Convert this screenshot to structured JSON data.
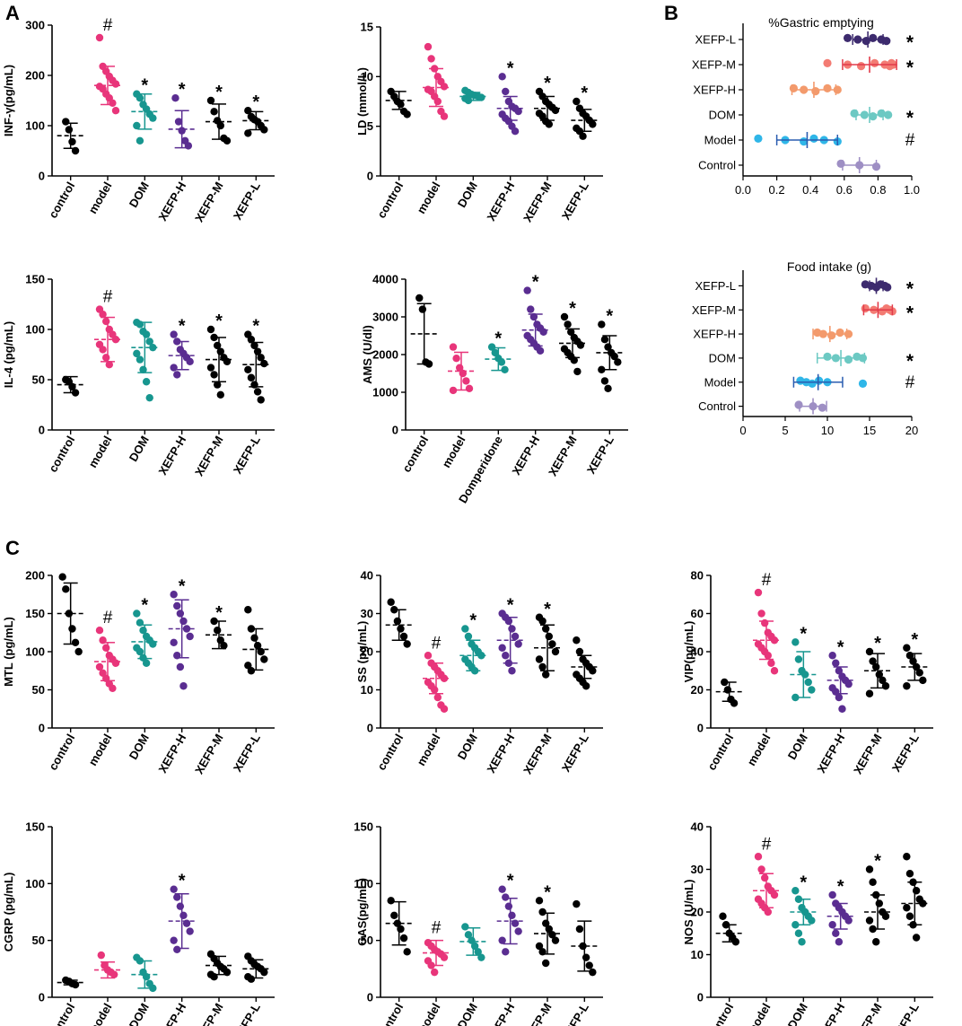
{
  "panel_letters": [
    "A",
    "B",
    "C"
  ],
  "colors": {
    "control": "#000000",
    "model": "#e8357a",
    "dom": "#17968f",
    "xefph": "#5a2d91",
    "xefpm": "#000000",
    "xefpl": "#000000",
    "b_control": "#9e8fc4",
    "b_model": "#2fb6e8",
    "b_dom": "#6cc9c3",
    "b_xefph": "#f39a6c",
    "b_xefpm": "#f37b73",
    "b_xefpl": "#3d2b6e",
    "b_model_bar": "#2a5db0",
    "b_xefpm_bar": "#e23b4a"
  },
  "chart_data": [
    {
      "id": "a1",
      "type": "scatter",
      "ylabel": "INF-γ(pg/mL)",
      "ylim": [
        0,
        300
      ],
      "yticks": [
        0,
        100,
        200,
        300
      ],
      "categories": [
        "control",
        "model",
        "DOM",
        "XEFP-H",
        "XEFP-M",
        "XEFP-L"
      ],
      "markers": [
        "",
        "#",
        "*",
        "*",
        "*",
        "*"
      ],
      "means": [
        80,
        180,
        128,
        93,
        108,
        110
      ],
      "sds": [
        25,
        38,
        35,
        37,
        35,
        18
      ],
      "points": [
        [
          108,
          92,
          68,
          50
        ],
        [
          275,
          218,
          208,
          198,
          190,
          183,
          178,
          173,
          163,
          155,
          145,
          130
        ],
        [
          163,
          155,
          142,
          133,
          123,
          115,
          100,
          70
        ],
        [
          155,
          108,
          90,
          70,
          60
        ],
        [
          150,
          128,
          110,
          100,
          75,
          70
        ],
        [
          130,
          118,
          112,
          108,
          100,
          92,
          85
        ]
      ]
    },
    {
      "id": "a2",
      "type": "scatter",
      "ylabel": "LD (mmol/L)",
      "ylim": [
        0,
        15
      ],
      "yticks": [
        0,
        5,
        10,
        15
      ],
      "categories": [
        "control",
        "model",
        "DOM",
        "XEFP-H",
        "XEFP-M",
        "XEFP-L"
      ],
      "markers": [
        "",
        "",
        "",
        "*",
        "*",
        "*"
      ],
      "means": [
        7.6,
        8.9,
        8.0,
        6.8,
        6.8,
        5.6
      ],
      "sds": [
        0.9,
        1.9,
        0.4,
        1.2,
        1.2,
        1.1
      ],
      "points": [
        [
          8.5,
          8.0,
          7.5,
          7.2,
          6.5,
          6.2
        ],
        [
          13.0,
          11.8,
          10.8,
          10.0,
          9.5,
          9.0,
          8.7,
          8.5,
          8.0,
          7.5,
          6.5,
          6.0
        ],
        [
          8.6,
          8.4,
          8.2,
          8.1,
          8.0,
          7.9,
          7.8,
          7.6
        ],
        [
          10.0,
          8.5,
          7.5,
          7.0,
          6.8,
          6.5,
          6.2,
          5.8,
          5.5,
          5.0,
          4.5
        ],
        [
          8.5,
          8.0,
          7.5,
          7.2,
          6.9,
          6.6,
          6.3,
          6.0,
          5.5,
          5.2
        ],
        [
          7.5,
          6.8,
          6.3,
          6.0,
          5.6,
          5.2,
          4.8,
          4.5,
          4.0
        ]
      ]
    },
    {
      "id": "a3",
      "type": "scatter",
      "ylabel": "IL-4 (pg/mL)",
      "ylim": [
        0,
        150
      ],
      "yticks": [
        0,
        50,
        100,
        150
      ],
      "categories": [
        "control",
        "model",
        "DOM",
        "XEFP-H",
        "XEFP-M",
        "XEFP-L"
      ],
      "markers": [
        "",
        "#",
        "",
        "*",
        "*",
        "*"
      ],
      "means": [
        45,
        90,
        82,
        74,
        70,
        65
      ],
      "sds": [
        8,
        22,
        25,
        14,
        22,
        22
      ],
      "points": [
        [
          50,
          48,
          43,
          37
        ],
        [
          120,
          115,
          108,
          100,
          95,
          90,
          85,
          80,
          72,
          65
        ],
        [
          107,
          105,
          98,
          95,
          88,
          82,
          76,
          70,
          60,
          48,
          32
        ],
        [
          95,
          88,
          80,
          76,
          72,
          68,
          62,
          55
        ],
        [
          100,
          92,
          84,
          78,
          72,
          68,
          62,
          55,
          45,
          35
        ],
        [
          95,
          90,
          84,
          78,
          72,
          66,
          60,
          52,
          45,
          38,
          30
        ]
      ]
    },
    {
      "id": "a4",
      "type": "scatter",
      "ylabel": "AMS (U/dl)",
      "ylim": [
        0,
        4000
      ],
      "yticks": [
        0,
        1000,
        2000,
        3000,
        4000
      ],
      "categories": [
        "control",
        "model",
        "Domperidone",
        "XEFP-H",
        "XEFP-M",
        "XEFP-L"
      ],
      "markers": [
        "",
        "",
        "*",
        "*",
        "*",
        "*"
      ],
      "means": [
        2550,
        1560,
        1880,
        2650,
        2300,
        2050
      ],
      "sds": [
        800,
        500,
        300,
        420,
        380,
        450
      ],
      "points": [
        [
          3500,
          3200,
          1800,
          1750
        ],
        [
          2200,
          1900,
          1650,
          1500,
          1300,
          1100,
          1050
        ],
        [
          2200,
          2050,
          1900,
          1800,
          1600
        ],
        [
          3700,
          3200,
          3000,
          2800,
          2700,
          2600,
          2500,
          2400,
          2300,
          2200,
          2100
        ],
        [
          3000,
          2800,
          2600,
          2450,
          2350,
          2250,
          2150,
          2050,
          1950,
          1850,
          1550
        ],
        [
          2800,
          2400,
          2200,
          2050,
          1950,
          1800,
          1600,
          1300,
          1100
        ]
      ]
    },
    {
      "id": "b1",
      "type": "scatter",
      "orientation": "horizontal",
      "title": "%Gastric emptying",
      "xlim": [
        0,
        1.0
      ],
      "xticks": [
        "0.0",
        "0.2",
        "0.4",
        "0.6",
        "0.8",
        "1.0"
      ],
      "categories": [
        "XEFP-L",
        "XEFP-M",
        "XEFP-H",
        "DOM",
        "Model",
        "Control"
      ],
      "markers": [
        "*",
        "*",
        "",
        "*",
        "#",
        ""
      ],
      "means": [
        0.74,
        0.75,
        0.42,
        0.75,
        0.38,
        0.69
      ],
      "sds": [
        0.09,
        0.16,
        0.13,
        0.08,
        0.18,
        0.1
      ],
      "points": [
        [
          0.62,
          0.68,
          0.73,
          0.77,
          0.82,
          0.85
        ],
        [
          0.5,
          0.62,
          0.7,
          0.78,
          0.84,
          0.87,
          0.88,
          0.89
        ],
        [
          0.3,
          0.36,
          0.43,
          0.5,
          0.56
        ],
        [
          0.66,
          0.72,
          0.77,
          0.82,
          0.86
        ],
        [
          0.09,
          0.25,
          0.36,
          0.42,
          0.48,
          0.56
        ],
        [
          0.58,
          0.69,
          0.79
        ]
      ]
    },
    {
      "id": "b2",
      "type": "scatter",
      "orientation": "horizontal",
      "title": "Food intake (g)",
      "xlim": [
        0,
        20
      ],
      "xticks": [
        "0",
        "5",
        "10",
        "15",
        "20"
      ],
      "categories": [
        "XEFP-L",
        "XEFP-M",
        "XEFP-H",
        "DOM",
        "Model",
        "Control"
      ],
      "markers": [
        "*",
        "*",
        "",
        "*",
        "#",
        ""
      ],
      "means": [
        15.8,
        16.0,
        10.3,
        11.6,
        8.9,
        8.3
      ],
      "sds": [
        0.8,
        1.7,
        2.0,
        2.8,
        2.9,
        1.6
      ],
      "points": [
        [
          14.5,
          15.2,
          15.8,
          16.3,
          16.8,
          17.1
        ],
        [
          14.5,
          15.5,
          16.5,
          17.0,
          17.4,
          17.7
        ],
        [
          8.8,
          9.5,
          10.5,
          11.5,
          12.5
        ],
        [
          10.0,
          11.0,
          12.5,
          13.5,
          14.2
        ],
        [
          6.8,
          7.5,
          8.2,
          9.0,
          10.0,
          14.2
        ],
        [
          6.6,
          8.3,
          9.4
        ]
      ]
    },
    {
      "id": "c1",
      "type": "scatter",
      "ylabel": "MTL (pg/mL)",
      "ylim": [
        0,
        200
      ],
      "yticks": [
        0,
        50,
        100,
        150,
        200
      ],
      "categories": [
        "control",
        "model",
        "DOM",
        "XEFP-H",
        "XEFP-M",
        "XEFP-L"
      ],
      "markers": [
        "",
        "#",
        "*",
        "*",
        "*",
        ""
      ],
      "means": [
        150,
        87,
        113,
        130,
        122,
        103
      ],
      "sds": [
        40,
        25,
        22,
        38,
        18,
        27
      ],
      "points": [
        [
          198,
          182,
          150,
          130,
          112,
          100
        ],
        [
          128,
          115,
          105,
          95,
          90,
          85,
          80,
          72,
          65,
          58,
          52
        ],
        [
          150,
          138,
          128,
          120,
          115,
          110,
          105,
          100,
          92,
          85
        ],
        [
          175,
          160,
          150,
          140,
          130,
          120,
          112,
          95,
          80,
          55
        ],
        [
          140,
          128,
          115,
          108
        ],
        [
          155,
          130,
          118,
          108,
          100,
          90,
          82,
          75
        ]
      ]
    },
    {
      "id": "c2",
      "type": "scatter",
      "ylabel": "SS (pg/mL)",
      "ylim": [
        0,
        40
      ],
      "yticks": [
        0,
        10,
        20,
        30,
        40
      ],
      "categories": [
        "control",
        "model",
        "DOM",
        "XEFP-H",
        "XEFP-M",
        "XEFP-L"
      ],
      "markers": [
        "",
        "#",
        "*",
        "*",
        "*",
        ""
      ],
      "means": [
        27,
        13,
        19,
        23,
        21,
        16
      ],
      "sds": [
        4,
        4,
        4,
        6,
        6,
        3
      ],
      "points": [
        [
          33,
          31,
          28,
          26,
          24,
          22
        ],
        [
          19,
          17,
          16,
          15,
          14,
          13,
          12,
          11,
          10,
          8,
          6,
          5
        ],
        [
          26,
          24,
          22,
          21,
          20,
          19,
          18,
          17,
          16,
          15
        ],
        [
          30,
          29,
          28,
          26,
          24,
          22,
          21,
          19,
          17,
          15
        ],
        [
          29,
          28,
          26,
          24,
          22,
          20,
          18,
          16,
          14
        ],
        [
          23,
          20,
          18,
          17,
          16,
          15,
          14,
          13,
          12,
          11
        ]
      ]
    },
    {
      "id": "c3",
      "type": "scatter",
      "ylabel": "VIP(pg/mL)",
      "ylim": [
        0,
        80
      ],
      "yticks": [
        0,
        20,
        40,
        60,
        80
      ],
      "categories": [
        "control",
        "model",
        "DOM",
        "XEFP-H",
        "XEFP-M",
        "XEFP-L"
      ],
      "markers": [
        "",
        "#",
        "*",
        "*",
        "*",
        "*"
      ],
      "means": [
        19,
        46,
        28,
        25,
        30,
        32
      ],
      "sds": [
        5,
        10,
        12,
        7,
        9,
        7
      ],
      "points": [
        [
          24,
          20,
          15,
          13
        ],
        [
          71,
          60,
          55,
          50,
          48,
          46,
          44,
          42,
          40,
          38,
          34,
          30
        ],
        [
          45,
          36,
          30,
          28,
          24,
          20,
          16
        ],
        [
          38,
          34,
          30,
          27,
          25,
          23,
          21,
          19,
          16,
          10
        ],
        [
          40,
          35,
          32,
          28,
          25,
          22,
          18
        ],
        [
          42,
          38,
          35,
          32,
          29,
          25,
          22
        ]
      ]
    },
    {
      "id": "c4",
      "type": "scatter",
      "ylabel": "CGRP (pg/mL)",
      "ylim": [
        0,
        150
      ],
      "yticks": [
        0,
        50,
        100,
        150
      ],
      "categories": [
        "control",
        "model",
        "DOM",
        "XEFP-H",
        "XEFP-M",
        "XEFP-L"
      ],
      "markers": [
        "",
        "",
        "",
        "*",
        "",
        ""
      ],
      "means": [
        13,
        24,
        20,
        67,
        28,
        25
      ],
      "sds": [
        2,
        7,
        12,
        24,
        8,
        8
      ],
      "points": [
        [
          15,
          14,
          12,
          11
        ],
        [
          37,
          28,
          24,
          22,
          20
        ],
        [
          35,
          32,
          22,
          18,
          12,
          8
        ],
        [
          95,
          88,
          80,
          72,
          65,
          58,
          50,
          42
        ],
        [
          38,
          34,
          30,
          27,
          25,
          22,
          20,
          18
        ],
        [
          36,
          32,
          29,
          27,
          25,
          22,
          18,
          16
        ]
      ]
    },
    {
      "id": "c5",
      "type": "scatter",
      "ylabel": "GAS(pg/mL)",
      "ylim": [
        0,
        150
      ],
      "yticks": [
        0,
        50,
        100,
        150
      ],
      "categories": [
        "control",
        "model",
        "DOM",
        "XEFP-H",
        "XEFP-M",
        "XEFP-L"
      ],
      "markers": [
        "",
        "#",
        "",
        "*",
        "*",
        ""
      ],
      "means": [
        65,
        39,
        49,
        67,
        56,
        45
      ],
      "sds": [
        19,
        11,
        12,
        20,
        18,
        22
      ],
      "points": [
        [
          85,
          72,
          65,
          60,
          52,
          40
        ],
        [
          48,
          45,
          42,
          40,
          38,
          35,
          32,
          28,
          22
        ],
        [
          62,
          55,
          50,
          45,
          40,
          35
        ],
        [
          95,
          88,
          80,
          72,
          65,
          58,
          50,
          40
        ],
        [
          85,
          75,
          65,
          60,
          55,
          50,
          45,
          40,
          30
        ],
        [
          82,
          60,
          45,
          35,
          28,
          22
        ]
      ]
    },
    {
      "id": "c6",
      "type": "scatter",
      "ylabel": "NOS (U/mL)",
      "ylim": [
        0,
        40
      ],
      "yticks": [
        0,
        10,
        20,
        30,
        40
      ],
      "categories": [
        "control",
        "model",
        "DOM",
        "XEFP-H",
        "XEFP-M",
        "XEFP-L"
      ],
      "markers": [
        "",
        "#",
        "*",
        "*",
        "*",
        ""
      ],
      "means": [
        15,
        25,
        20,
        19,
        20,
        22
      ],
      "sds": [
        2,
        4,
        3,
        3,
        4,
        5
      ],
      "points": [
        [
          19,
          17,
          15,
          14,
          13
        ],
        [
          33,
          30,
          28,
          26,
          25,
          24,
          23,
          22,
          21,
          20
        ],
        [
          25,
          23,
          21,
          20,
          19,
          18,
          17,
          15,
          13
        ],
        [
          24,
          22,
          21,
          20,
          19,
          18,
          17,
          15,
          13
        ],
        [
          30,
          27,
          24,
          22,
          20,
          19,
          18,
          16,
          13
        ],
        [
          33,
          29,
          27,
          25,
          23,
          22,
          21,
          19,
          17,
          14
        ]
      ]
    }
  ]
}
